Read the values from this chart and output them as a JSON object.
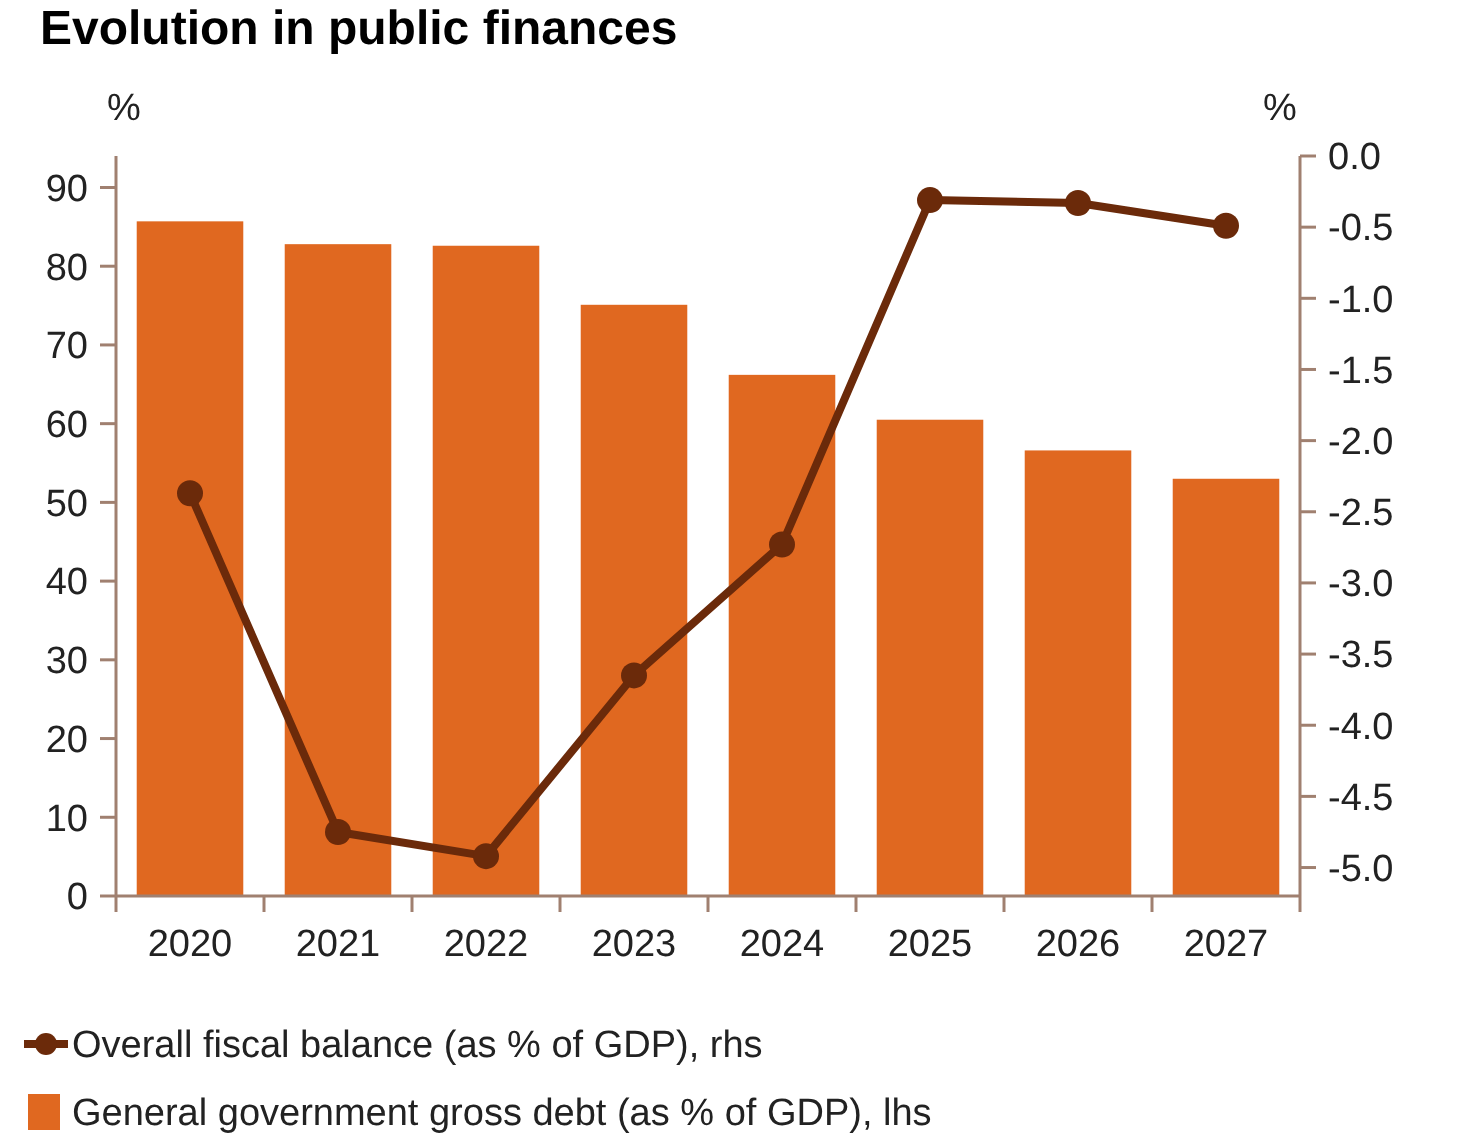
{
  "chart_data": {
    "type": "bar",
    "title": "Evolution in public finances",
    "ylabel": "%",
    "y2label": "%",
    "categories": [
      "2020",
      "2021",
      "2022",
      "2023",
      "2024",
      "2025",
      "2026",
      "2027"
    ],
    "series": [
      {
        "name": "Overall fiscal balance (as % of GDP), rhs",
        "type": "line",
        "axis": "y2",
        "color": "#6b2a0a",
        "marker": "circle",
        "values": [
          -2.37,
          -4.75,
          -4.92,
          -3.65,
          -2.73,
          -0.31,
          -0.33,
          -0.49
        ]
      },
      {
        "name": "General government gross debt (as % of GDP), lhs",
        "color": "#e06820",
        "values": [
          85.7,
          82.8,
          82.6,
          75.1,
          66.2,
          60.5,
          56.6,
          53.0
        ]
      }
    ],
    "ylim": [
      0,
      94
    ],
    "yticks": [
      0,
      10,
      20,
      30,
      40,
      50,
      60,
      70,
      80,
      90
    ],
    "y2lim": [
      -5.2,
      0
    ],
    "y2ticks": [
      {
        "value": 0,
        "label": "0.0"
      },
      {
        "value": -0.5,
        "label": "-0.5"
      },
      {
        "value": -1,
        "label": "-1.0"
      },
      {
        "value": -1.5,
        "label": "-1.5"
      },
      {
        "value": -2,
        "label": "-2.0"
      },
      {
        "value": -2.5,
        "label": "-2.5"
      },
      {
        "value": -3,
        "label": "-3.0"
      },
      {
        "value": -3.5,
        "label": "-3.5"
      },
      {
        "value": -4,
        "label": "-4.0"
      },
      {
        "value": -4.5,
        "label": "-4.5"
      },
      {
        "value": -5,
        "label": "-5.0"
      }
    ],
    "grid": false,
    "legend": "bottom"
  }
}
